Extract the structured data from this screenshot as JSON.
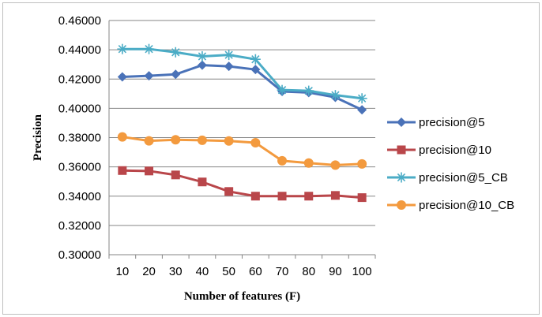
{
  "chart_data": {
    "type": "line",
    "title": "",
    "xlabel": "Number of features (F)",
    "ylabel": "Precision",
    "categories": [
      "10",
      "20",
      "30",
      "40",
      "50",
      "60",
      "70",
      "80",
      "90",
      "100"
    ],
    "ylim": [
      0.3,
      0.46
    ],
    "yticks": [
      "0.30000",
      "0.32000",
      "0.34000",
      "0.36000",
      "0.38000",
      "0.40000",
      "0.42000",
      "0.44000",
      "0.46000"
    ],
    "grid": true,
    "legend_position": "right",
    "series": [
      {
        "name": "precision@5",
        "color": "#4a72b8",
        "marker": "diamond",
        "values": [
          0.4215,
          0.4222,
          0.4232,
          0.4295,
          0.4287,
          0.4265,
          0.4115,
          0.4108,
          0.4075,
          0.399
        ]
      },
      {
        "name": "precision@10",
        "color": "#b9464a",
        "marker": "square",
        "values": [
          0.3575,
          0.3572,
          0.3545,
          0.3497,
          0.3432,
          0.34,
          0.34,
          0.34,
          0.3405,
          0.339
        ]
      },
      {
        "name": "precision@5_CB",
        "color": "#4bacc6",
        "marker": "star",
        "values": [
          0.4405,
          0.4405,
          0.4383,
          0.4355,
          0.4365,
          0.4335,
          0.4125,
          0.412,
          0.409,
          0.4068
        ]
      },
      {
        "name": "precision@10_CB",
        "color": "#f39a3e",
        "marker": "circle",
        "values": [
          0.3805,
          0.3778,
          0.3785,
          0.3782,
          0.3777,
          0.3765,
          0.3642,
          0.3626,
          0.3612,
          0.362
        ]
      }
    ]
  }
}
